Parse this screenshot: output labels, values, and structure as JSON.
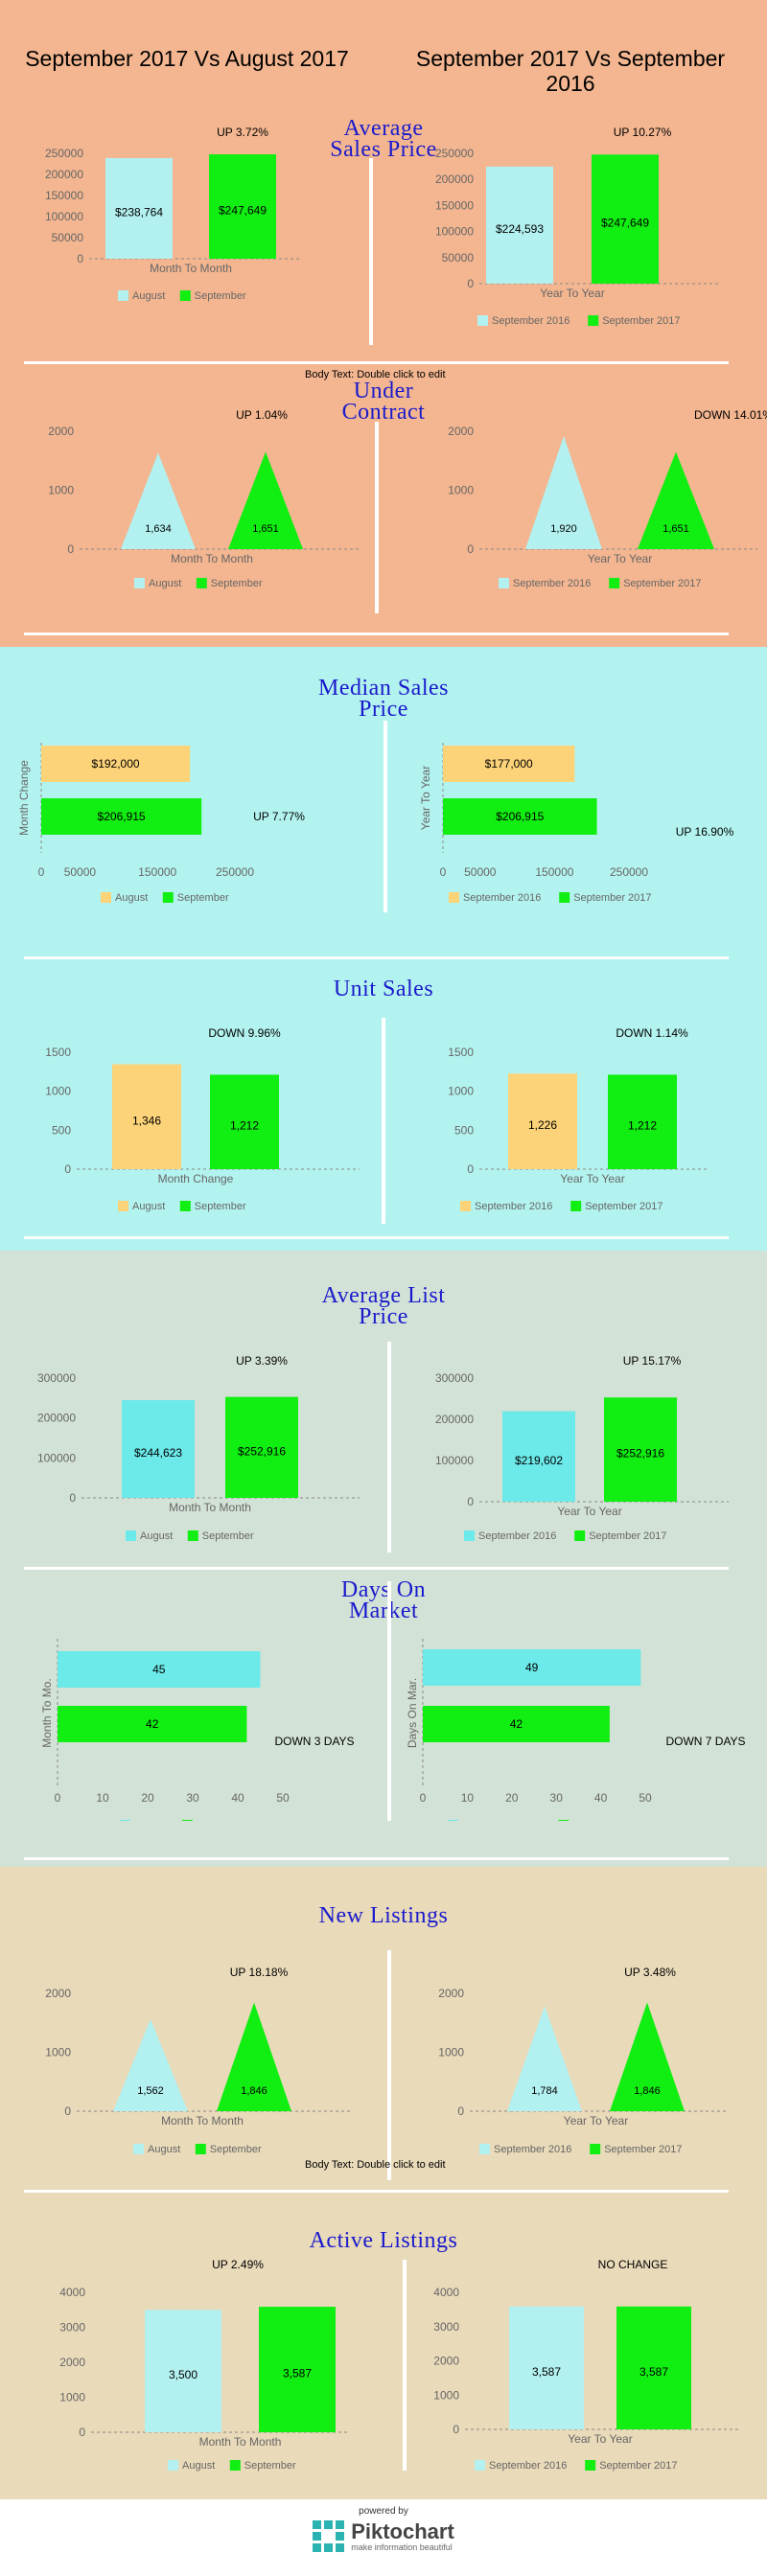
{
  "header": {
    "left_title": "September 2017 Vs August 2017",
    "right_title": "September 2017 Vs September 2016"
  },
  "colors": {
    "band1": "#f3b690",
    "band2": "#b3f3ef",
    "band3": "#d3e2d6",
    "band4": "#e9dab9",
    "light_blue": "#b3f0f0",
    "cyan": "#6ce9e9",
    "yellow": "#fcd378",
    "green": "#11ee11",
    "title_blue": "#1a1acc",
    "axis_gray": "#666666"
  },
  "body_text": "Body Text: Double click to edit",
  "sections": {
    "avg_sales": {
      "title1": "Average",
      "title2": "Sales Price"
    },
    "under_contract": {
      "title1": "Under",
      "title2": "Contract"
    },
    "median_sales": {
      "title1": "Median Sales",
      "title2": "Price"
    },
    "unit_sales": {
      "title1": "Unit Sales"
    },
    "avg_list": {
      "title1": "Average List",
      "title2": "Price"
    },
    "days_on_market": {
      "title1": "Days On",
      "title2": "Market"
    },
    "new_listings": {
      "title1": "New Listings"
    },
    "active_listings": {
      "title1": "Active Listings"
    }
  },
  "chart_data": [
    {
      "id": "avg_sales_mtm",
      "type": "bar",
      "categories": [
        "August",
        "September"
      ],
      "values": [
        238764,
        247649
      ],
      "labels": [
        "$238,764",
        "$247,649"
      ],
      "xlabel": "Month To Month",
      "ylim": [
        0,
        250000
      ],
      "yticks": [
        0,
        50000,
        100000,
        150000,
        200000,
        250000
      ],
      "annotation": "UP 3.72%",
      "colors": [
        "#b3f0f0",
        "#11ee11"
      ]
    },
    {
      "id": "avg_sales_yty",
      "type": "bar",
      "categories": [
        "September 2016",
        "September 2017"
      ],
      "values": [
        224593,
        247649
      ],
      "labels": [
        "$224,593",
        "$247,649"
      ],
      "xlabel": "Year To Year",
      "ylim": [
        0,
        250000
      ],
      "yticks": [
        0,
        50000,
        100000,
        150000,
        200000,
        250000
      ],
      "annotation": "UP 10.27%",
      "colors": [
        "#b3f0f0",
        "#11ee11"
      ]
    },
    {
      "id": "under_contract_mtm",
      "type": "triangle",
      "categories": [
        "August",
        "September"
      ],
      "values": [
        1634,
        1651
      ],
      "labels": [
        "1,634",
        "1,651"
      ],
      "xlabel": "Month To Month",
      "ylim": [
        0,
        2000
      ],
      "yticks": [
        0,
        1000,
        2000
      ],
      "annotation": "UP 1.04%",
      "colors": [
        "#b3f0f0",
        "#11ee11"
      ]
    },
    {
      "id": "under_contract_yty",
      "type": "triangle",
      "categories": [
        "September 2016",
        "September 2017"
      ],
      "values": [
        1920,
        1651
      ],
      "labels": [
        "1,920",
        "1,651"
      ],
      "xlabel": "Year To Year",
      "ylim": [
        0,
        2000
      ],
      "yticks": [
        0,
        1000,
        2000
      ],
      "annotation": "DOWN 14.01%",
      "colors": [
        "#b3f0f0",
        "#11ee11"
      ]
    },
    {
      "id": "median_mtm",
      "type": "hbar",
      "categories": [
        "August",
        "September"
      ],
      "values": [
        192000,
        206915
      ],
      "labels": [
        "$192,000",
        "$206,915"
      ],
      "ylabel": "Month Change",
      "xlim": [
        0,
        250000
      ],
      "xticks": [
        0,
        50000,
        150000,
        250000
      ],
      "annotation": "UP 7.77%",
      "colors": [
        "#fcd378",
        "#11ee11"
      ]
    },
    {
      "id": "median_yty",
      "type": "hbar",
      "categories": [
        "September 2016",
        "September 2017"
      ],
      "values": [
        177000,
        206915
      ],
      "labels": [
        "$177,000",
        "$206,915"
      ],
      "ylabel": "Year To Year",
      "xlim": [
        0,
        250000
      ],
      "xticks": [
        0,
        50000,
        150000,
        250000
      ],
      "annotation": "UP 16.90%",
      "colors": [
        "#fcd378",
        "#11ee11"
      ]
    },
    {
      "id": "unit_mtm",
      "type": "bar",
      "categories": [
        "August",
        "September"
      ],
      "values": [
        1346,
        1212
      ],
      "labels": [
        "1,346",
        "1,212"
      ],
      "xlabel": "Month Change",
      "ylim": [
        0,
        1500
      ],
      "yticks": [
        0,
        500,
        1000,
        1500
      ],
      "annotation": "DOWN 9.96%",
      "colors": [
        "#fcd378",
        "#11ee11"
      ]
    },
    {
      "id": "unit_yty",
      "type": "bar",
      "categories": [
        "September 2016",
        "September 2017"
      ],
      "values": [
        1226,
        1212
      ],
      "labels": [
        "1,226",
        "1,212"
      ],
      "xlabel": "Year To Year",
      "ylim": [
        0,
        1500
      ],
      "yticks": [
        0,
        500,
        1000,
        1500
      ],
      "annotation": "DOWN 1.14%",
      "colors": [
        "#fcd378",
        "#11ee11"
      ]
    },
    {
      "id": "list_mtm",
      "type": "bar",
      "categories": [
        "August",
        "September"
      ],
      "values": [
        244623,
        252916
      ],
      "labels": [
        "$244,623",
        "$252,916"
      ],
      "xlabel": "Month To Month",
      "ylim": [
        0,
        300000
      ],
      "yticks": [
        0,
        100000,
        200000,
        300000
      ],
      "annotation": "UP 3.39%",
      "colors": [
        "#6ce9e9",
        "#11ee11"
      ]
    },
    {
      "id": "list_yty",
      "type": "bar",
      "categories": [
        "September 2016",
        "September 2017"
      ],
      "values": [
        219602,
        252916
      ],
      "labels": [
        "$219,602",
        "$252,916"
      ],
      "xlabel": "Year To Year",
      "ylim": [
        0,
        300000
      ],
      "yticks": [
        0,
        100000,
        200000,
        300000
      ],
      "annotation": "UP 15.17%",
      "colors": [
        "#6ce9e9",
        "#11ee11"
      ]
    },
    {
      "id": "dom_mtm",
      "type": "hbar",
      "categories": [
        "August",
        "September"
      ],
      "values": [
        45,
        42
      ],
      "labels": [
        "45",
        "42"
      ],
      "ylabel": "Month To Mo.",
      "xlim": [
        0,
        50
      ],
      "xticks": [
        0,
        10,
        20,
        30,
        40,
        50
      ],
      "annotation": "DOWN 3 DAYS",
      "colors": [
        "#6ce9e9",
        "#11ee11"
      ]
    },
    {
      "id": "dom_yty",
      "type": "hbar",
      "categories": [
        "September 2016",
        "September 2017"
      ],
      "values": [
        49,
        42
      ],
      "labels": [
        "49",
        "42"
      ],
      "ylabel": "Days On Mar.",
      "xlim": [
        0,
        50
      ],
      "xticks": [
        0,
        10,
        20,
        30,
        40,
        50
      ],
      "annotation": "DOWN 7 DAYS",
      "colors": [
        "#6ce9e9",
        "#11ee11"
      ]
    },
    {
      "id": "new_mtm",
      "type": "triangle",
      "categories": [
        "August",
        "September"
      ],
      "values": [
        1562,
        1846
      ],
      "labels": [
        "1,562",
        "1,846"
      ],
      "xlabel": "Month To Month",
      "ylim": [
        0,
        2000
      ],
      "yticks": [
        0,
        1000,
        2000
      ],
      "annotation": "UP 18.18%",
      "colors": [
        "#b3f0f0",
        "#11ee11"
      ]
    },
    {
      "id": "new_yty",
      "type": "triangle",
      "categories": [
        "September 2016",
        "September 2017"
      ],
      "values": [
        1784,
        1846
      ],
      "labels": [
        "1,784",
        "1,846"
      ],
      "xlabel": "Year To Year",
      "ylim": [
        0,
        2000
      ],
      "yticks": [
        0,
        1000,
        2000
      ],
      "annotation": "UP 3.48%",
      "colors": [
        "#b3f0f0",
        "#11ee11"
      ]
    },
    {
      "id": "active_mtm",
      "type": "bar",
      "categories": [
        "August",
        "September"
      ],
      "values": [
        3500,
        3587
      ],
      "labels": [
        "3,500",
        "3,587"
      ],
      "xlabel": "Month To Month",
      "ylim": [
        0,
        4000
      ],
      "yticks": [
        0,
        1000,
        2000,
        3000,
        4000
      ],
      "annotation": "UP 2.49%",
      "colors": [
        "#b3f0f0",
        "#11ee11"
      ]
    },
    {
      "id": "active_yty",
      "type": "bar",
      "categories": [
        "September 2016",
        "September 2017"
      ],
      "values": [
        3587,
        3587
      ],
      "labels": [
        "3,587",
        "3,587"
      ],
      "xlabel": "Year To Year",
      "ylim": [
        0,
        4000
      ],
      "yticks": [
        0,
        1000,
        2000,
        3000,
        4000
      ],
      "annotation": "NO CHANGE",
      "colors": [
        "#b3f0f0",
        "#11ee11"
      ]
    }
  ],
  "footer": {
    "powered_by": "powered by",
    "brand": "Piktochart",
    "tagline": "make information beautiful"
  }
}
